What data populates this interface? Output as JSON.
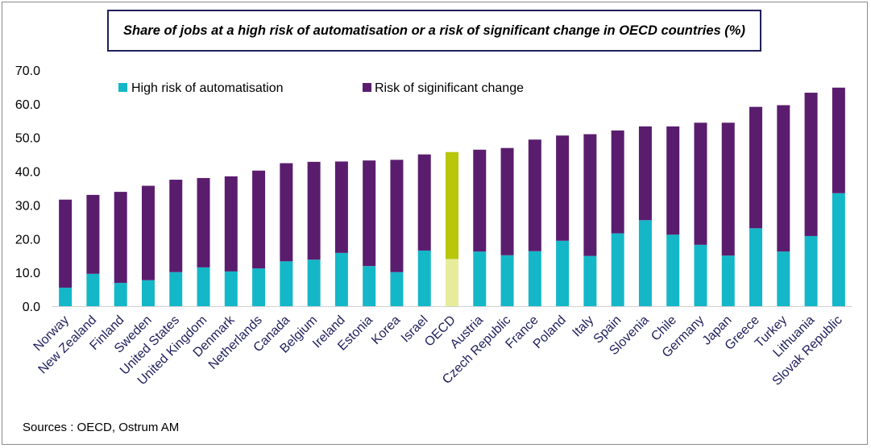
{
  "title": "Share of jobs at a high risk of automatisation or a risk of significant change in OECD countries (%)",
  "source": "Sources : OECD, Ostrum AM",
  "colors": {
    "high_risk": "#14b7c8",
    "significant_change": "#5a1d6e",
    "oecd_high_risk": "#e6ec9a",
    "oecd_significant_change": "#b8c60c"
  },
  "chart_data": {
    "type": "bar",
    "stacked": true,
    "title": "Share of jobs at a high risk of automatisation or a risk of significant change in OECD countries (%)",
    "categories": [
      "Norway",
      "New Zealand",
      "Finland",
      "Sweden",
      "United States",
      "United Kingdom",
      "Denmark",
      "Netherlands",
      "Canada",
      "Belgium",
      "Ireland",
      "Estonia",
      "Korea",
      "Israel",
      "OECD",
      "Austria",
      "Czech Republic",
      "France",
      "Poland",
      "Italy",
      "Spain",
      "Slovenia",
      "Chile",
      "Germany",
      "Japan",
      "Greece",
      "Turkey",
      "Lithuania",
      "Slovak Republic"
    ],
    "highlight_category": "OECD",
    "series": [
      {
        "name": "High risk of automatisation",
        "values": [
          5.5,
          9.6,
          6.9,
          7.7,
          10.1,
          11.5,
          10.3,
          11.2,
          13.3,
          13.8,
          15.8,
          11.9,
          10.1,
          16.5,
          14.0,
          16.2,
          15.1,
          16.3,
          19.4,
          14.9,
          21.6,
          25.5,
          21.2,
          18.2,
          15.0,
          23.1,
          16.2,
          20.8,
          33.5
        ]
      },
      {
        "name": "Risk of siginificant change",
        "values": [
          26.1,
          23.4,
          27.0,
          28.0,
          27.4,
          26.5,
          28.2,
          29.0,
          29.1,
          29.0,
          27.1,
          31.3,
          33.3,
          28.5,
          31.7,
          30.2,
          31.8,
          33.1,
          31.2,
          36.1,
          30.5,
          27.8,
          32.1,
          36.2,
          39.4,
          36.0,
          43.4,
          42.5,
          31.3
        ]
      }
    ],
    "ylim": [
      0,
      70
    ],
    "yticks": [
      "0.0",
      "10.0",
      "20.0",
      "30.0",
      "40.0",
      "50.0",
      "60.0",
      "70.0"
    ],
    "xlabel": "",
    "ylabel": "",
    "grid": false,
    "legend_position": "top-left"
  }
}
